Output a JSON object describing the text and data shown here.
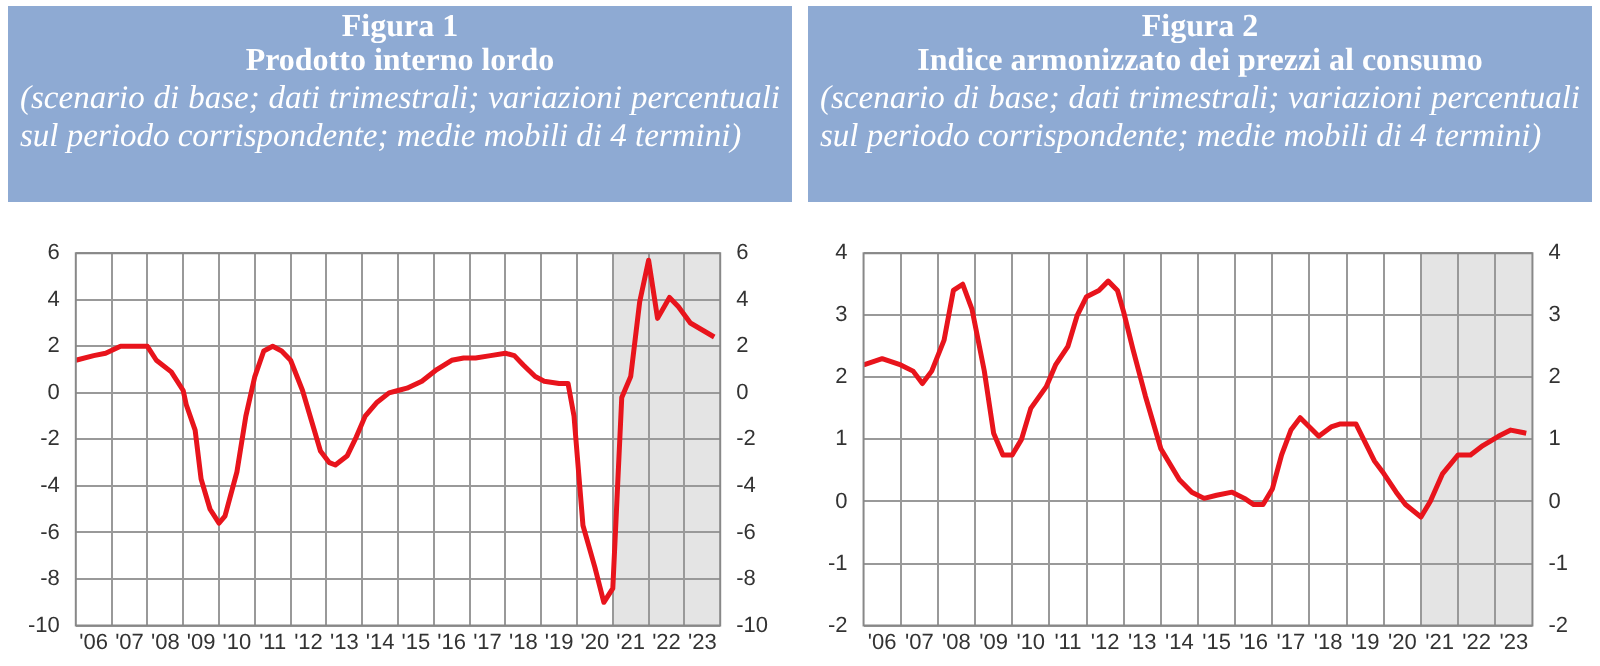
{
  "chart_data": [
    {
      "type": "line",
      "title": "Figura 1",
      "subtitle": "Prodotto interno lordo",
      "annotations": [
        "(scenario di base; dati trimestrali; variazioni percentuali sul periodo corrispondente; medie mobili di 4 termini)"
      ],
      "x": [
        "2006-01",
        "2006-07",
        "2006-11",
        "2007-04",
        "2007-07",
        "2008-01",
        "2008-04",
        "2008-09",
        "2009-01",
        "2009-02",
        "2009-05",
        "2009-07",
        "2009-10",
        "2010-01",
        "2010-03",
        "2010-07",
        "2010-10",
        "2011-01",
        "2011-04",
        "2011-07",
        "2011-10",
        "2012-01",
        "2012-05",
        "2012-08",
        "2012-11",
        "2013-02",
        "2013-04",
        "2013-08",
        "2013-11",
        "2014-02",
        "2014-06",
        "2014-10",
        "2015-01",
        "2015-04",
        "2015-09",
        "2016-02",
        "2016-07",
        "2016-11",
        "2017-03",
        "2017-08",
        "2018-01",
        "2018-04",
        "2018-07",
        "2018-11",
        "2019-02",
        "2019-07",
        "2019-10",
        "2019-12",
        "2020-03",
        "2020-07",
        "2020-10",
        "2021-01",
        "2021-04",
        "2021-07",
        "2021-10",
        "2022-01",
        "2022-04",
        "2022-08",
        "2022-11",
        "2023-03",
        "2023-07",
        "2023-11"
      ],
      "series": [
        {
          "color": "#e8141c",
          "values": [
            1.4,
            1.6,
            1.7,
            2.0,
            2.0,
            2.0,
            1.4,
            0.9,
            0.1,
            -0.5,
            -1.6,
            -3.7,
            -5.0,
            -5.6,
            -5.3,
            -3.4,
            -1.0,
            0.7,
            1.8,
            2.0,
            1.8,
            1.4,
            0.1,
            -1.2,
            -2.5,
            -3.0,
            -3.1,
            -2.7,
            -1.9,
            -1.0,
            -0.4,
            0.0,
            0.1,
            0.2,
            0.5,
            1.0,
            1.4,
            1.5,
            1.5,
            1.6,
            1.7,
            1.6,
            1.2,
            0.7,
            0.5,
            0.4,
            0.4,
            -1.0,
            -5.7,
            -7.5,
            -9.0,
            -8.4,
            -0.2,
            0.7,
            3.9,
            5.7,
            3.2,
            4.1,
            3.7,
            3.0,
            2.7,
            2.4
          ]
        }
      ],
      "xlim": [
        "2006",
        "2024"
      ],
      "xticks": [
        {
          "value": "2006-07",
          "label": "'06"
        },
        {
          "value": "2007",
          "label": null
        },
        {
          "value": "2007-07",
          "label": "'07"
        },
        {
          "value": "2008",
          "label": null
        },
        {
          "value": "2008-07",
          "label": "'08"
        },
        {
          "value": "2009",
          "label": null
        },
        {
          "value": "2009-07",
          "label": "'09"
        },
        {
          "value": "2010",
          "label": null
        },
        {
          "value": "2010-07",
          "label": "'10"
        },
        {
          "value": "2011",
          "label": null
        },
        {
          "value": "2011-07",
          "label": "'11"
        },
        {
          "value": "2012",
          "label": null
        },
        {
          "value": "2012-07",
          "label": "'12"
        },
        {
          "value": "2013",
          "label": null
        },
        {
          "value": "2013-07",
          "label": "'13"
        },
        {
          "value": "2014",
          "label": null
        },
        {
          "value": "2014-07",
          "label": "'14"
        },
        {
          "value": "2015",
          "label": null
        },
        {
          "value": "2015-07",
          "label": "'15"
        },
        {
          "value": "2016",
          "label": null
        },
        {
          "value": "2016-07",
          "label": "'16"
        },
        {
          "value": "2017",
          "label": null
        },
        {
          "value": "2017-07",
          "label": "'17"
        },
        {
          "value": "2018",
          "label": null
        },
        {
          "value": "2018-07",
          "label": "'18"
        },
        {
          "value": "2019",
          "label": null
        },
        {
          "value": "2019-07",
          "label": "'19"
        },
        {
          "value": "2020",
          "label": null
        },
        {
          "value": "2020-07",
          "label": "'20"
        },
        {
          "value": "2021",
          "label": null
        },
        {
          "value": "2021-07",
          "label": "'21"
        },
        {
          "value": "2022",
          "label": null
        },
        {
          "value": "2022-07",
          "label": "'22"
        },
        {
          "value": "2023",
          "label": null
        },
        {
          "value": "2023-07",
          "label": "'23"
        }
      ],
      "ylim": [
        -10,
        6
      ],
      "yticks": [
        -10,
        -8,
        -6,
        -4,
        -2,
        0,
        2,
        4,
        6
      ],
      "y2lim": [
        -10,
        6
      ],
      "y2ticks": [
        -10,
        -8,
        -6,
        -4,
        -2,
        0,
        2,
        4,
        6
      ],
      "bands": [
        {
          "axis": "x",
          "from": "2021",
          "to": "2024",
          "color": "#e4e4e4"
        }
      ],
      "grid": true,
      "legend": false,
      "marker": "none",
      "line_style": "solid"
    },
    {
      "type": "line",
      "title": "Figura 2",
      "subtitle": "Indice armonizzato dei prezzi al consumo",
      "annotations": [
        "(scenario di base; dati trimestrali; variazioni percentuali sul periodo corrispondente; medie mobili di 4 termini)"
      ],
      "x": [
        "2006-01",
        "2006-07",
        "2007-01",
        "2007-05",
        "2007-08",
        "2007-11",
        "2008-03",
        "2008-06",
        "2008-09",
        "2008-12",
        "2009-04",
        "2009-07",
        "2009-10",
        "2010-01",
        "2010-04",
        "2010-07",
        "2010-12",
        "2011-03",
        "2011-07",
        "2011-10",
        "2012-01",
        "2012-05",
        "2012-08",
        "2012-11",
        "2013-01",
        "2013-04",
        "2013-08",
        "2014-01",
        "2014-04",
        "2014-07",
        "2014-11",
        "2015-03",
        "2015-07",
        "2015-12",
        "2016-04",
        "2016-07",
        "2016-10",
        "2017-01",
        "2017-04",
        "2017-07",
        "2017-10",
        "2018-01",
        "2018-04",
        "2018-08",
        "2018-11",
        "2019-04",
        "2019-06",
        "2019-10",
        "2020-01",
        "2020-05",
        "2020-08",
        "2021-01",
        "2021-04",
        "2021-08",
        "2022-01",
        "2022-05",
        "2022-09",
        "2023-02",
        "2023-06",
        "2023-11"
      ],
      "series": [
        {
          "color": "#e8141c",
          "values": [
            2.2,
            2.3,
            2.2,
            2.1,
            1.9,
            2.1,
            2.6,
            3.4,
            3.5,
            3.1,
            2.1,
            1.1,
            0.75,
            0.75,
            1.0,
            1.5,
            1.85,
            2.2,
            2.5,
            3.0,
            3.3,
            3.4,
            3.55,
            3.4,
            3.05,
            2.45,
            1.7,
            0.85,
            0.6,
            0.35,
            0.15,
            0.05,
            0.1,
            0.15,
            0.05,
            -0.05,
            -0.05,
            0.2,
            0.75,
            1.15,
            1.35,
            1.2,
            1.05,
            1.2,
            1.25,
            1.25,
            1.05,
            0.65,
            0.45,
            0.15,
            -0.05,
            -0.25,
            0.0,
            0.45,
            0.75,
            0.75,
            0.9,
            1.05,
            1.15,
            1.1
          ]
        }
      ],
      "xlim": [
        "2006",
        "2024"
      ],
      "xticks": [
        {
          "value": "2006-07",
          "label": "'06"
        },
        {
          "value": "2007",
          "label": null
        },
        {
          "value": "2007-07",
          "label": "'07"
        },
        {
          "value": "2008",
          "label": null
        },
        {
          "value": "2008-07",
          "label": "'08"
        },
        {
          "value": "2009",
          "label": null
        },
        {
          "value": "2009-07",
          "label": "'09"
        },
        {
          "value": "2010",
          "label": null
        },
        {
          "value": "2010-07",
          "label": "'10"
        },
        {
          "value": "2011",
          "label": null
        },
        {
          "value": "2011-07",
          "label": "'11"
        },
        {
          "value": "2012",
          "label": null
        },
        {
          "value": "2012-07",
          "label": "'12"
        },
        {
          "value": "2013",
          "label": null
        },
        {
          "value": "2013-07",
          "label": "'13"
        },
        {
          "value": "2014",
          "label": null
        },
        {
          "value": "2014-07",
          "label": "'14"
        },
        {
          "value": "2015",
          "label": null
        },
        {
          "value": "2015-07",
          "label": "'15"
        },
        {
          "value": "2016",
          "label": null
        },
        {
          "value": "2016-07",
          "label": "'16"
        },
        {
          "value": "2017",
          "label": null
        },
        {
          "value": "2017-07",
          "label": "'17"
        },
        {
          "value": "2018",
          "label": null
        },
        {
          "value": "2018-07",
          "label": "'18"
        },
        {
          "value": "2019",
          "label": null
        },
        {
          "value": "2019-07",
          "label": "'19"
        },
        {
          "value": "2020",
          "label": null
        },
        {
          "value": "2020-07",
          "label": "'20"
        },
        {
          "value": "2021",
          "label": null
        },
        {
          "value": "2021-07",
          "label": "'21"
        },
        {
          "value": "2022",
          "label": null
        },
        {
          "value": "2022-07",
          "label": "'22"
        },
        {
          "value": "2023",
          "label": null
        },
        {
          "value": "2023-07",
          "label": "'23"
        }
      ],
      "ylim": [
        -2,
        4
      ],
      "yticks": [
        -2,
        -1,
        0,
        1,
        2,
        3,
        4
      ],
      "y2lim": [
        -2,
        4
      ],
      "y2ticks": [
        -2,
        -1,
        0,
        1,
        2,
        3,
        4
      ],
      "bands": [
        {
          "axis": "x",
          "from": "2021",
          "to": "2024",
          "color": "#e4e4e4"
        }
      ],
      "grid": true,
      "legend": false,
      "marker": "none",
      "line_style": "solid"
    }
  ]
}
